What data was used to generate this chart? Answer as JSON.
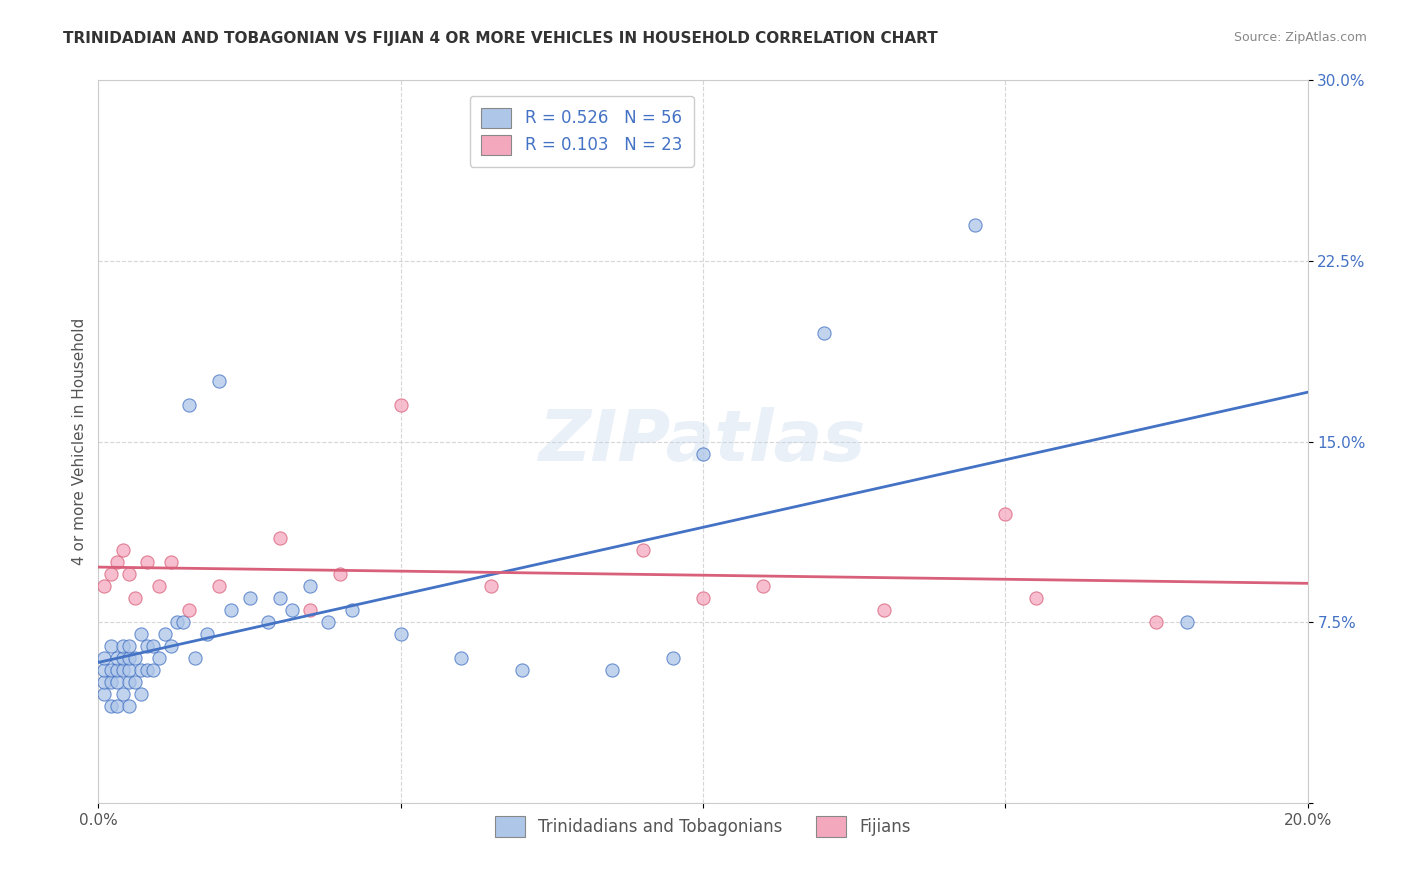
{
  "title": "TRINIDADIAN AND TOBAGONIAN VS FIJIAN 4 OR MORE VEHICLES IN HOUSEHOLD CORRELATION CHART",
  "source": "Source: ZipAtlas.com",
  "ylabel": "4 or more Vehicles in Household",
  "xmin": 0.0,
  "xmax": 0.2,
  "ymin": 0.0,
  "ymax": 0.3,
  "blue_R": 0.526,
  "blue_N": 56,
  "pink_R": 0.103,
  "pink_N": 23,
  "blue_color": "#aec6e8",
  "pink_color": "#f4a8be",
  "blue_line_color": "#4472c4",
  "pink_line_color": "#d9607a",
  "legend_blue_label": "Trinidadians and Tobagonians",
  "legend_pink_label": "Fijians",
  "blue_scatter_x": [
    0.001,
    0.001,
    0.001,
    0.001,
    0.002,
    0.002,
    0.002,
    0.002,
    0.003,
    0.003,
    0.003,
    0.003,
    0.004,
    0.004,
    0.004,
    0.004,
    0.005,
    0.005,
    0.005,
    0.005,
    0.005,
    0.006,
    0.006,
    0.007,
    0.007,
    0.007,
    0.008,
    0.008,
    0.009,
    0.009,
    0.01,
    0.011,
    0.012,
    0.013,
    0.014,
    0.015,
    0.016,
    0.018,
    0.02,
    0.022,
    0.025,
    0.028,
    0.03,
    0.032,
    0.035,
    0.038,
    0.042,
    0.05,
    0.06,
    0.07,
    0.085,
    0.095,
    0.1,
    0.12,
    0.145,
    0.18
  ],
  "blue_scatter_y": [
    0.045,
    0.05,
    0.055,
    0.06,
    0.04,
    0.05,
    0.055,
    0.065,
    0.04,
    0.05,
    0.055,
    0.06,
    0.045,
    0.055,
    0.06,
    0.065,
    0.04,
    0.05,
    0.055,
    0.06,
    0.065,
    0.05,
    0.06,
    0.045,
    0.055,
    0.07,
    0.055,
    0.065,
    0.055,
    0.065,
    0.06,
    0.07,
    0.065,
    0.075,
    0.075,
    0.165,
    0.06,
    0.07,
    0.175,
    0.08,
    0.085,
    0.075,
    0.085,
    0.08,
    0.09,
    0.075,
    0.08,
    0.07,
    0.06,
    0.055,
    0.055,
    0.06,
    0.145,
    0.195,
    0.24,
    0.075
  ],
  "pink_scatter_x": [
    0.001,
    0.002,
    0.003,
    0.004,
    0.005,
    0.006,
    0.008,
    0.01,
    0.012,
    0.015,
    0.02,
    0.03,
    0.035,
    0.04,
    0.05,
    0.065,
    0.09,
    0.1,
    0.11,
    0.13,
    0.15,
    0.155,
    0.175
  ],
  "pink_scatter_y": [
    0.09,
    0.095,
    0.1,
    0.105,
    0.095,
    0.085,
    0.1,
    0.09,
    0.1,
    0.08,
    0.09,
    0.11,
    0.08,
    0.095,
    0.165,
    0.09,
    0.105,
    0.085,
    0.09,
    0.08,
    0.12,
    0.085,
    0.075
  ],
  "watermark_text": "ZIPatlas",
  "background_color": "#ffffff",
  "grid_color": "#cccccc",
  "title_fontsize": 11,
  "source_fontsize": 9,
  "axis_label_fontsize": 11,
  "tick_fontsize": 11,
  "legend_fontsize": 12,
  "scatter_size": 90,
  "line_width": 2.0
}
